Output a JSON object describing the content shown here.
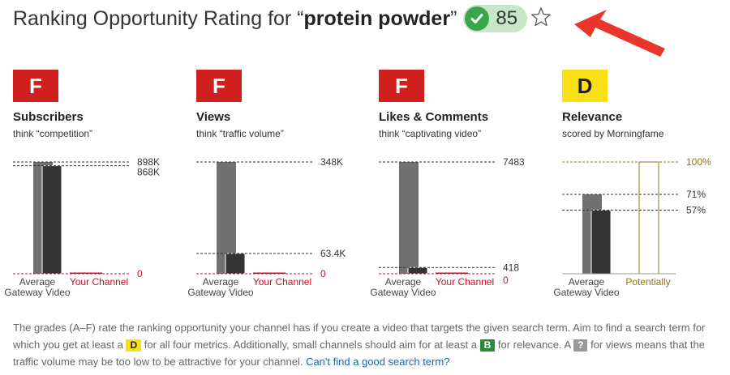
{
  "header": {
    "title_prefix": "Ranking Opportunity Rating for “",
    "keyword": "protein powder",
    "title_suffix": "”",
    "score": "85",
    "check_icon": "check-circle-icon",
    "star_icon": "star-outline-icon",
    "arrow_icon": "red-arrow-icon",
    "colors": {
      "score_bg": "#c8e7c6",
      "check": "#3aa64b",
      "arrow": "#e8372a"
    }
  },
  "metrics": [
    {
      "grade": "F",
      "title": "Subscribers",
      "subtitle": "think “competition”"
    },
    {
      "grade": "F",
      "title": "Views",
      "subtitle": "think “traffic volume”"
    },
    {
      "grade": "F",
      "title": "Likes & Comments",
      "subtitle": "think “captivating video”"
    },
    {
      "grade": "D",
      "title": "Relevance",
      "subtitle": "scored by Morningfame"
    }
  ],
  "chart_data": [
    {
      "type": "bar",
      "categories": [
        "Average",
        "Your Channel"
      ],
      "category_note": "Gateway Video",
      "values": {
        "average_top": 898000,
        "gateway_video": 868000,
        "your_channel": 0
      },
      "labels": [
        "898K",
        "868K",
        "0"
      ]
    },
    {
      "type": "bar",
      "categories": [
        "Average",
        "Your Channel"
      ],
      "category_note": "Gateway Video",
      "values": {
        "average_top": 348000,
        "gateway_video": 63400,
        "your_channel": 0
      },
      "labels": [
        "348K",
        "63.4K",
        "0"
      ]
    },
    {
      "type": "bar",
      "categories": [
        "Average",
        "Your Channel"
      ],
      "category_note": "Gateway Video",
      "values": {
        "average_top": 7483,
        "gateway_video": 418,
        "your_channel": 0
      },
      "labels": [
        "7483",
        "418",
        "0"
      ]
    },
    {
      "type": "bar",
      "categories": [
        "Average",
        "Potentially"
      ],
      "category_note": "Gateway Video",
      "values": {
        "average_top": 71,
        "gateway_video": 57,
        "potentially": 100
      },
      "labels": [
        "100%",
        "71%",
        "57%"
      ]
    }
  ],
  "footnote": {
    "part1": "The grades (A–F) rate the ranking opportunity your channel has if you create a video that targets the given search term. Aim to find a search term for which you get at least a",
    "tag1": "D",
    "part2": "for all four metrics. Additionally, small channels should aim for at least a",
    "tag2": "B",
    "part3": "for relevance. A",
    "tag3": "?",
    "part4": "for views means that the traffic volume may be too low to be attractive for your channel.",
    "link": "Can't find a good search term?"
  },
  "colors": {
    "grade_f": "#d0201e",
    "grade_d": "#f8df16",
    "bar_average": "#707070",
    "bar_gateway": "#333333",
    "your_channel": "#c8102e",
    "potentially": "#8c7a10",
    "link": "#1a62b8"
  }
}
